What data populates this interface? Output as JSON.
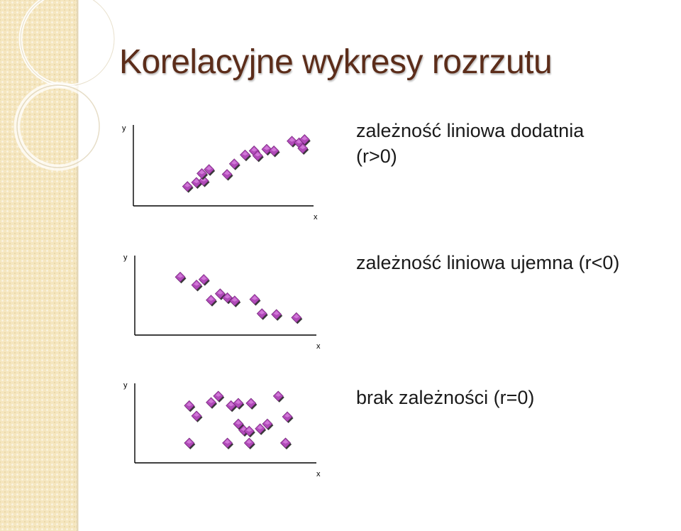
{
  "slide": {
    "title": "Korelacyjne wykresy rozrzutu"
  },
  "colors": {
    "title": "#5c2d1a",
    "marker_fill": "#b04ab8",
    "marker_top": "#e08ae6",
    "marker_shadow": "#3a3a3a",
    "side_strip": "#f5e6bf"
  },
  "chart_data": [
    {
      "type": "scatter",
      "title": "",
      "xlabel": "x",
      "ylabel": "y",
      "xlim": [
        0,
        100
      ],
      "ylim": [
        0,
        100
      ],
      "grid": false,
      "description_lines": [
        "zależność liniowa dodatnia",
        "(r>0)"
      ],
      "x": [
        30,
        35,
        39,
        38,
        42,
        52,
        56,
        62,
        67,
        69,
        74,
        78,
        88,
        92,
        95,
        94
      ],
      "y": [
        24,
        29,
        31,
        40,
        45,
        39,
        52,
        63,
        68,
        62,
        70,
        68,
        80,
        78,
        82,
        71
      ]
    },
    {
      "type": "scatter",
      "title": "",
      "xlabel": "x",
      "ylabel": "y",
      "xlim": [
        0,
        100
      ],
      "ylim": [
        0,
        100
      ],
      "grid": false,
      "description_lines": [
        "zależność liniowa ujemna (r<0)"
      ],
      "x": [
        25,
        34,
        38,
        42,
        47,
        51,
        55,
        66,
        70,
        78,
        89
      ],
      "y": [
        73,
        63,
        70,
        44,
        52,
        47,
        43,
        45,
        27,
        26,
        22
      ]
    },
    {
      "type": "scatter",
      "title": "",
      "xlabel": "x",
      "ylabel": "y",
      "xlim": [
        0,
        100
      ],
      "ylim": [
        0,
        100
      ],
      "grid": false,
      "description_lines": [
        "brak zależności (r=0)"
      ],
      "x": [
        30,
        34,
        42,
        46,
        53,
        57,
        60,
        57,
        63,
        64,
        69,
        73,
        79,
        84,
        83,
        30,
        51,
        63,
        83
      ],
      "y": [
        72,
        59,
        76,
        84,
        72,
        49,
        41,
        75,
        40,
        75,
        43,
        49,
        84,
        58,
        25,
        25,
        25,
        25,
        25
      ]
    }
  ]
}
